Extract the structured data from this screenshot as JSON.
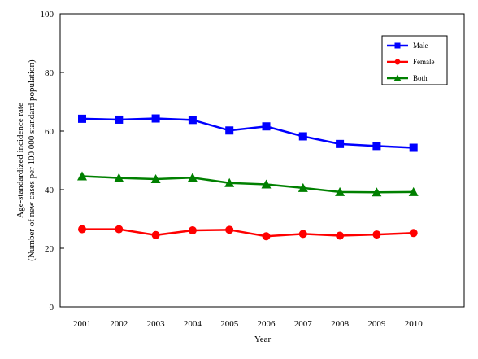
{
  "chart_data": {
    "type": "line",
    "xlabel": "Year",
    "ylabel": "Age-standardized incidence rate",
    "ylabel2": "(Number of new cases per 100 000 standard population)",
    "categories": [
      "2001",
      "2002",
      "2003",
      "2004",
      "2005",
      "2006",
      "2007",
      "2008",
      "2009",
      "2010"
    ],
    "yticks": [
      "0",
      "20",
      "40",
      "60",
      "80",
      "100"
    ],
    "ylim": [
      0,
      100
    ],
    "grid": false,
    "legend_position": "top-right",
    "series": [
      {
        "name": "Male",
        "color": "#0000ff",
        "marker": "square",
        "values": [
          64.2,
          63.9,
          64.3,
          63.8,
          60.2,
          61.6,
          58.2,
          55.6,
          54.9,
          54.3
        ]
      },
      {
        "name": "Female",
        "color": "#ff0000",
        "marker": "circle",
        "values": [
          26.5,
          26.5,
          24.5,
          26.1,
          26.3,
          24.1,
          24.9,
          24.3,
          24.7,
          25.2
        ]
      },
      {
        "name": "Both",
        "color": "#008000",
        "marker": "triangle",
        "values": [
          44.6,
          44.0,
          43.6,
          44.1,
          42.3,
          41.8,
          40.6,
          39.2,
          39.1,
          39.2
        ]
      }
    ]
  }
}
